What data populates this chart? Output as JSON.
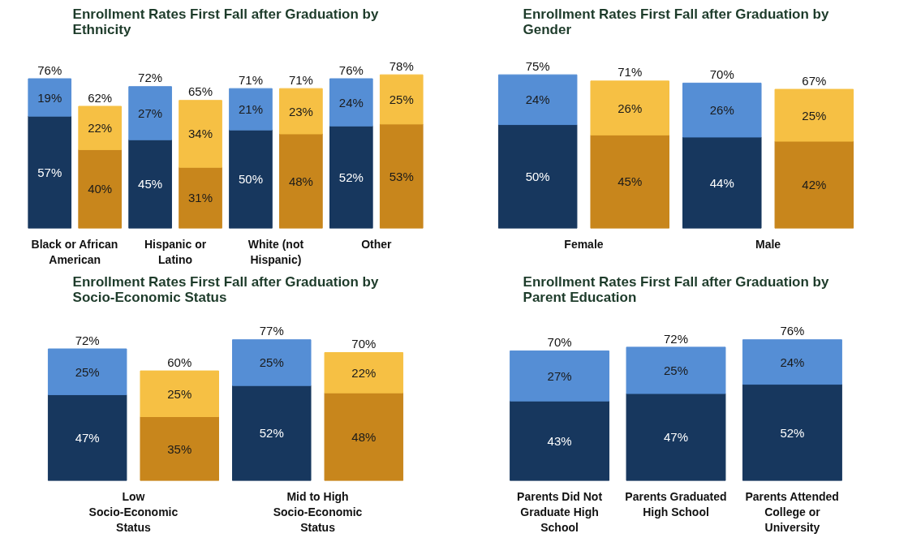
{
  "chart_data": [
    {
      "type": "bar",
      "stacked": true,
      "title": "Enrollment Rates First Fall after Graduation by Ethnicity",
      "categories": [
        "Black or African American",
        null,
        "Hispanic or Latino",
        null,
        "White (not Hispanic)",
        null,
        "Other",
        null
      ],
      "series": [
        {
          "color": "#17375e",
          "values": [
            57,
            null,
            45,
            null,
            50,
            null,
            52,
            null
          ],
          "value_labels": [
            "57%",
            null,
            "45%",
            null,
            "50%",
            null,
            "52%",
            null
          ]
        },
        {
          "color": "#558ed5",
          "values": [
            19,
            null,
            27,
            null,
            21,
            null,
            24,
            null
          ],
          "value_labels": [
            "19%",
            null,
            "27%",
            null,
            "21%",
            null,
            "24%",
            null
          ]
        },
        {
          "color": "#c8861c",
          "values": [
            null,
            40,
            null,
            31,
            null,
            48,
            null,
            53
          ],
          "value_labels": [
            null,
            "40%",
            null,
            "31%",
            null,
            "48%",
            null,
            "53%"
          ]
        },
        {
          "color": "#f6c044",
          "values": [
            null,
            22,
            null,
            34,
            null,
            23,
            null,
            25
          ],
          "value_labels": [
            null,
            "22%",
            null,
            "34%",
            null,
            "23%",
            null,
            "25%"
          ]
        }
      ],
      "totals": [
        "76%",
        "62%",
        "72%",
        "65%",
        "71%",
        "71%",
        "76%",
        "78%"
      ]
    },
    {
      "type": "bar",
      "stacked": true,
      "title": "Enrollment Rates First Fall after Graduation by Gender",
      "categories": [
        "Female",
        null,
        "Male",
        null
      ],
      "series": [
        {
          "color": "#17375e",
          "values": [
            50,
            null,
            44,
            null
          ],
          "value_labels": [
            "50%",
            null,
            "44%",
            null
          ]
        },
        {
          "color": "#558ed5",
          "values": [
            24,
            null,
            26,
            null
          ],
          "value_labels": [
            "24%",
            null,
            "26%",
            null
          ]
        },
        {
          "color": "#c8861c",
          "values": [
            null,
            45,
            null,
            42
          ],
          "value_labels": [
            null,
            "45%",
            null,
            "42%"
          ]
        },
        {
          "color": "#f6c044",
          "values": [
            null,
            26,
            null,
            25
          ],
          "value_labels": [
            null,
            "26%",
            null,
            "25%"
          ]
        }
      ],
      "totals": [
        "75%",
        "71%",
        "70%",
        "67%"
      ]
    },
    {
      "type": "bar",
      "stacked": true,
      "title": "Enrollment Rates First Fall after Graduation by Socio-Economic Status",
      "categories": [
        "Low Socio-Economic Status",
        null,
        "Mid to High Socio-Economic Status",
        null
      ],
      "series": [
        {
          "color": "#17375e",
          "values": [
            47,
            null,
            52,
            null
          ],
          "value_labels": [
            "47%",
            null,
            "52%",
            null
          ]
        },
        {
          "color": "#558ed5",
          "values": [
            25,
            null,
            25,
            null
          ],
          "value_labels": [
            "25%",
            null,
            "25%",
            null
          ]
        },
        {
          "color": "#c8861c",
          "values": [
            null,
            35,
            null,
            48
          ],
          "value_labels": [
            null,
            "35%",
            null,
            "48%"
          ]
        },
        {
          "color": "#f6c044",
          "values": [
            null,
            25,
            null,
            22
          ],
          "value_labels": [
            null,
            "25%",
            null,
            "22%"
          ]
        }
      ],
      "totals": [
        "72%",
        "60%",
        "77%",
        "70%"
      ]
    },
    {
      "type": "bar",
      "stacked": true,
      "title": "Enrollment Rates First Fall after Graduation by Parent Education",
      "categories": [
        "Parents Did Not Graduate High School",
        "Parents Graduated High School",
        "Parents Attended College or University"
      ],
      "series": [
        {
          "color": "#17375e",
          "values": [
            43,
            47,
            52
          ],
          "value_labels": [
            "43%",
            "47%",
            "52%"
          ]
        },
        {
          "color": "#558ed5",
          "values": [
            27,
            25,
            24
          ],
          "value_labels": [
            "27%",
            "25%",
            "24%"
          ]
        }
      ],
      "totals": [
        "70%",
        "72%",
        "76%"
      ]
    }
  ]
}
